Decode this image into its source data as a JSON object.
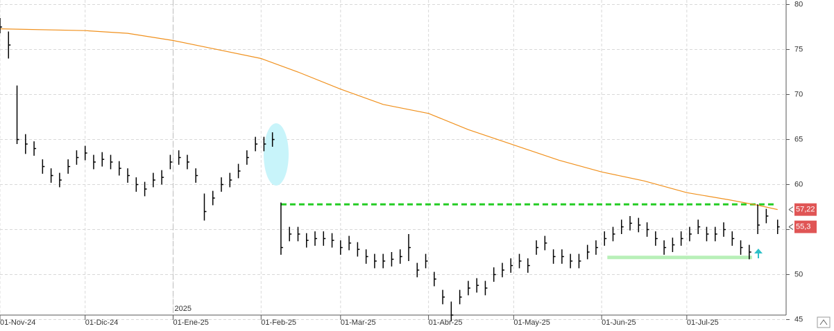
{
  "chart_data": {
    "type": "ohlc",
    "x": [
      0,
      3,
      6,
      9,
      12,
      15,
      18,
      21,
      24,
      27,
      30,
      33,
      36,
      39,
      42,
      45,
      48,
      51,
      54,
      57,
      60,
      63,
      66,
      69,
      72,
      75,
      78,
      81,
      84,
      87,
      90,
      93,
      96,
      99,
      102,
      105,
      108,
      111,
      114,
      117,
      120,
      123,
      126,
      129,
      132,
      135,
      138,
      141,
      144,
      147,
      150,
      153,
      156,
      159,
      162,
      165,
      168,
      171,
      174,
      177,
      180,
      183,
      186,
      189,
      192,
      195,
      198,
      201,
      204,
      207,
      210,
      213,
      216,
      219,
      222,
      225,
      228,
      231,
      234,
      237,
      240,
      243,
      246,
      249,
      252,
      255,
      258,
      261,
      264,
      267,
      270,
      274
    ],
    "high": [
      78.5,
      77,
      71,
      65.6,
      64.8,
      62.8,
      61.8,
      61.3,
      62.8,
      63.8,
      64.3,
      63.3,
      63.6,
      63.3,
      62.6,
      61.8,
      60.8,
      60.3,
      61.3,
      61.6,
      63.3,
      63.8,
      63.3,
      61.8,
      59,
      59.3,
      60.8,
      61.3,
      62.3,
      63.8,
      65.3,
      65.3,
      65.8,
      58,
      55.3,
      55.3,
      54.6,
      54.8,
      54.8,
      54.6,
      53.8,
      54.3,
      53.6,
      52.8,
      52.3,
      52.3,
      52.5,
      52.8,
      54.5,
      51.3,
      52.3,
      50.3,
      48.3,
      47,
      48.3,
      49.3,
      49.6,
      49.3,
      50.8,
      51.3,
      51.8,
      52.3,
      51.8,
      53.8,
      54.3,
      52.8,
      52.8,
      52.3,
      52.3,
      53.3,
      53.8,
      54.8,
      55.3,
      56.1,
      56.5,
      56.3,
      55.8,
      54.8,
      53.8,
      54.1,
      54.8,
      55.3,
      56.1,
      55.3,
      55.3,
      55.8,
      54.8,
      53.8,
      53.3,
      57.8,
      57.3,
      56.1
    ],
    "low": [
      76.8,
      74,
      64.5,
      63.4,
      63.2,
      61.2,
      60.2,
      59.7,
      61.2,
      62.2,
      62.7,
      61.7,
      62,
      61.7,
      61,
      60.2,
      59.2,
      58.7,
      59.7,
      60,
      61.7,
      62.2,
      61.7,
      60.2,
      56,
      57.7,
      59.2,
      59.7,
      60.7,
      62.2,
      63.7,
      63.7,
      64.2,
      52.2,
      53.7,
      53.7,
      53,
      53.2,
      53.2,
      53,
      52.2,
      52.7,
      52,
      51.2,
      50.7,
      50.7,
      50.9,
      51.2,
      51.5,
      49.7,
      50.7,
      48.7,
      46.7,
      44.8,
      46.7,
      47.7,
      48,
      47.7,
      49.2,
      49.7,
      50.2,
      50.7,
      50.2,
      52.2,
      52.7,
      51.2,
      51.2,
      50.7,
      50.7,
      51.7,
      52.2,
      53.2,
      53.7,
      54.5,
      54.9,
      54.7,
      54.2,
      53.2,
      52.2,
      52.5,
      53.2,
      53.7,
      54.5,
      53.7,
      53.7,
      54.2,
      53.2,
      52.2,
      51.7,
      54.5,
      55.7,
      54.5
    ],
    "close": [
      77.5,
      75.5,
      65,
      64.5,
      64,
      62,
      61,
      60.5,
      62,
      63,
      63.5,
      62.5,
      62.8,
      62.5,
      61.8,
      61,
      60,
      59.5,
      60.5,
      60.8,
      62.5,
      63,
      62.5,
      61,
      57,
      58.5,
      60,
      60.5,
      61.5,
      63,
      64.5,
      64.5,
      65,
      53,
      54.5,
      54.5,
      53.8,
      54,
      54,
      53.8,
      53,
      53.5,
      52.8,
      52,
      51.5,
      51.5,
      51.7,
      52,
      53,
      50.5,
      51.5,
      49.5,
      47.5,
      45.5,
      47.5,
      48.5,
      48.8,
      48.5,
      50,
      50.5,
      51,
      51.5,
      51,
      53,
      53.5,
      52,
      52,
      51.5,
      51.5,
      52.5,
      53,
      54,
      54.5,
      55.3,
      55.7,
      55.5,
      55,
      54,
      53,
      53.3,
      54,
      54.5,
      55.3,
      54.5,
      54.5,
      55,
      54,
      53,
      52.5,
      55.5,
      56.5,
      55.3
    ],
    "color": "#000000",
    "moving_average": {
      "color": "#f0901c",
      "x": [
        0,
        30,
        45,
        61,
        75,
        92,
        105,
        120,
        135,
        151,
        165,
        181,
        197,
        212,
        227,
        242,
        257,
        267,
        274
      ],
      "values": [
        77.3,
        77.1,
        76.8,
        76,
        75.1,
        74,
        72.5,
        70.6,
        68.9,
        67.9,
        66.1,
        64.4,
        62.7,
        61.4,
        60.4,
        59.1,
        58.3,
        57.7,
        57.22
      ]
    },
    "levels": [
      {
        "value": 57.8,
        "from": 99,
        "to": 273,
        "color": "#22cc22",
        "dashed": true
      },
      {
        "value": 51.9,
        "from": 214,
        "to": 265,
        "color": "#b8f0b8",
        "dashed": false
      }
    ],
    "price_labels": [
      {
        "value": 57.22,
        "label": "57,22",
        "color": "#e05555"
      },
      {
        "value": 55.3,
        "label": "55,3",
        "color": "#e05555"
      }
    ],
    "year_marker": {
      "value": 61,
      "label": "2025"
    },
    "xlim": [
      0,
      277
    ],
    "ylim": [
      45.5,
      80.5
    ],
    "xticks": [
      {
        "value": 0,
        "label": "01-Nov-24"
      },
      {
        "value": 30,
        "label": "01-Dic-24"
      },
      {
        "value": 61,
        "label": "01-Ene-25"
      },
      {
        "value": 92,
        "label": "01-Feb-25"
      },
      {
        "value": 120,
        "label": "01-Mar-25"
      },
      {
        "value": 151,
        "label": "01-Abr-25"
      },
      {
        "value": 181,
        "label": "01-May-25"
      },
      {
        "value": 212,
        "label": "01-Jun-25"
      },
      {
        "value": 242,
        "label": "01-Jul-25"
      }
    ],
    "yticks": [
      45,
      50,
      55,
      60,
      65,
      70,
      75,
      80
    ],
    "grid": true
  }
}
